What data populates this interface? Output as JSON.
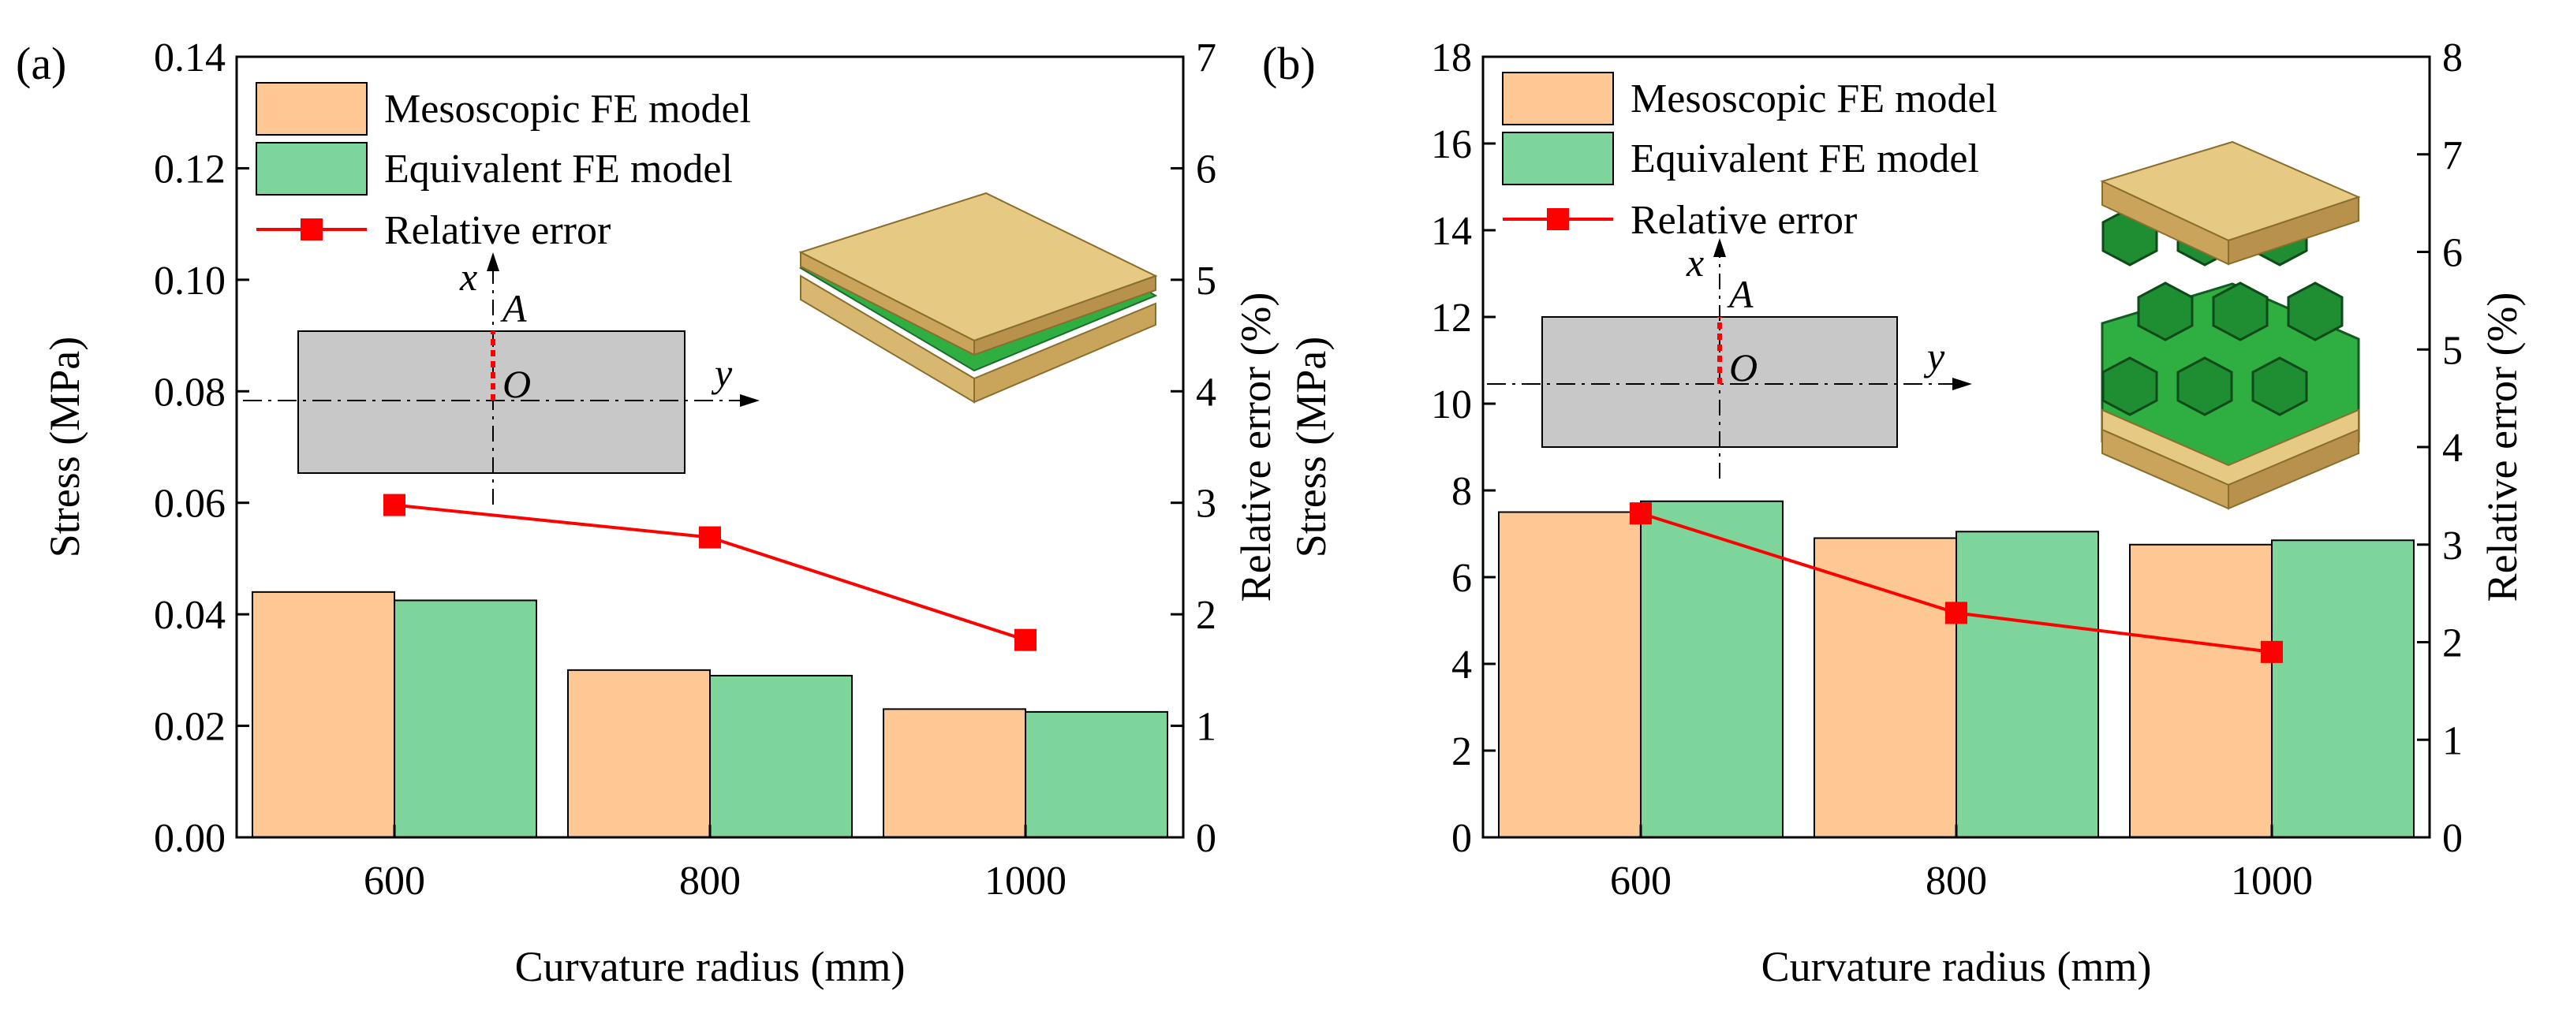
{
  "chart_data": [
    {
      "type": "bar",
      "panel_label": "(a)",
      "categories": [
        "600",
        "800",
        "1000"
      ],
      "series": [
        {
          "name": "Mesoscopic FE model",
          "values": [
            0.044,
            0.03,
            0.023
          ],
          "color": "#FDC894",
          "axis": "left"
        },
        {
          "name": "Equivalent FE model",
          "values": [
            0.0425,
            0.029,
            0.0225
          ],
          "color": "#7ED59C",
          "axis": "left"
        }
      ],
      "line_series": {
        "name": "Relative error",
        "values": [
          2.98,
          2.69,
          1.77
        ],
        "color": "#FF0000",
        "axis": "right"
      },
      "xlabel": "Curvature radius (mm)",
      "ylabel": "Stress (MPa)",
      "y2label": "Relative error (%)",
      "ylim": [
        0,
        0.14
      ],
      "y2lim": [
        0,
        7
      ],
      "yticks": [
        "0.00",
        "0.02",
        "0.04",
        "0.06",
        "0.08",
        "0.10",
        "0.12",
        "0.14"
      ],
      "y2ticks": [
        "0",
        "1",
        "2",
        "3",
        "4",
        "5",
        "6",
        "7"
      ],
      "legend_position": "top-left",
      "inset_labels": {
        "x": "x",
        "y": "y",
        "A": "A",
        "O": "O"
      }
    },
    {
      "type": "bar",
      "panel_label": "(b)",
      "categories": [
        "600",
        "800",
        "1000"
      ],
      "series": [
        {
          "name": "Mesoscopic FE model",
          "values": [
            7.5,
            6.9,
            6.75
          ],
          "color": "#FDC894",
          "axis": "left"
        },
        {
          "name": "Equivalent FE model",
          "values": [
            7.75,
            7.05,
            6.85
          ],
          "color": "#7ED59C",
          "axis": "left"
        }
      ],
      "line_series": {
        "name": "Relative error",
        "values": [
          3.32,
          2.3,
          1.9
        ],
        "color": "#FF0000",
        "axis": "right"
      },
      "xlabel": "Curvature radius (mm)",
      "ylabel": "Stress (MPa)",
      "y2label": "Relative error (%)",
      "ylim": [
        0,
        18
      ],
      "y2lim": [
        0,
        8
      ],
      "yticks": [
        "0",
        "2",
        "4",
        "6",
        "8",
        "10",
        "12",
        "14",
        "16",
        "18"
      ],
      "y2ticks": [
        "0",
        "1",
        "2",
        "3",
        "4",
        "5",
        "6",
        "7",
        "8"
      ],
      "legend_position": "top-left",
      "inset_labels": {
        "x": "x",
        "y": "y",
        "A": "A",
        "O": "O"
      }
    }
  ]
}
